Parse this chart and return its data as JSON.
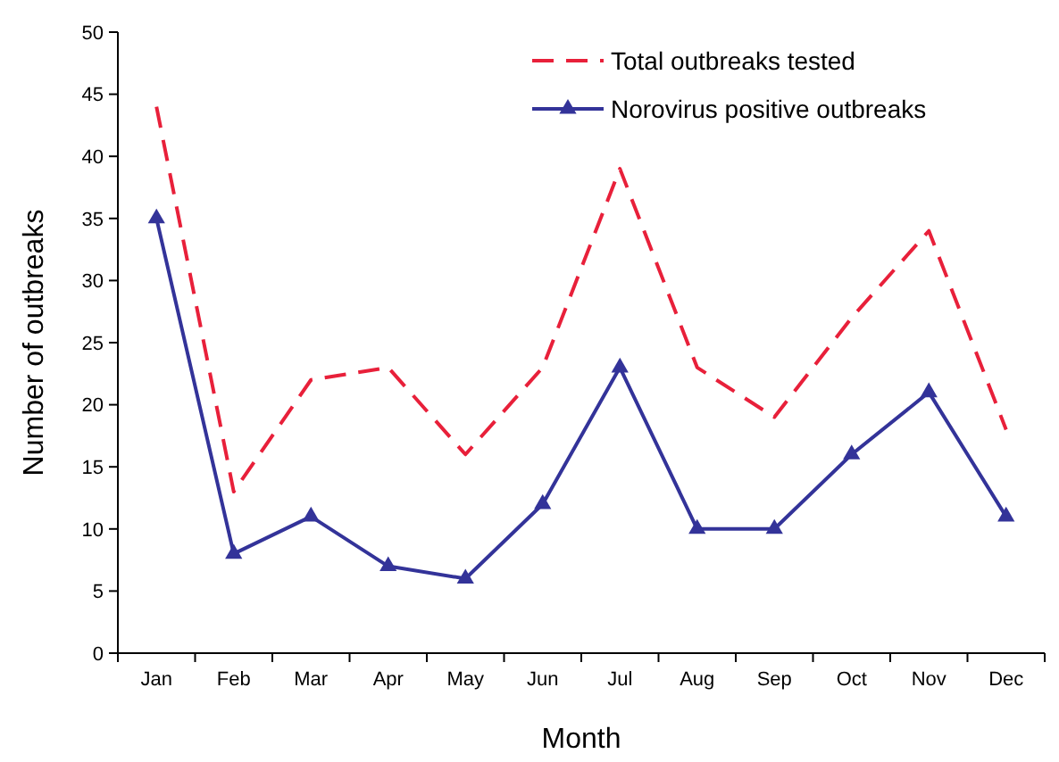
{
  "chart_data": {
    "type": "line",
    "xlabel": "Month",
    "ylabel": "Number of outbreaks",
    "categories": [
      "Jan",
      "Feb",
      "Mar",
      "Apr",
      "May",
      "Jun",
      "Jul",
      "Aug",
      "Sep",
      "Oct",
      "Nov",
      "Dec"
    ],
    "series": [
      {
        "name": "Total outbreaks tested",
        "color": "#e8203a",
        "line_style": "dashed",
        "marker": "none",
        "values": [
          44,
          13,
          22,
          23,
          16,
          23,
          39,
          23,
          19,
          27,
          34,
          18
        ]
      },
      {
        "name": "Norovirus positive outbreaks",
        "color": "#333399",
        "line_style": "solid",
        "marker": "triangle",
        "values": [
          35,
          8,
          11,
          7,
          6,
          12,
          23,
          10,
          10,
          16,
          21,
          11
        ]
      }
    ],
    "ylim": [
      0,
      50
    ],
    "yticks": [
      0,
      5,
      10,
      15,
      20,
      25,
      30,
      35,
      40,
      45,
      50
    ],
    "grid": false,
    "legend": "top right"
  }
}
